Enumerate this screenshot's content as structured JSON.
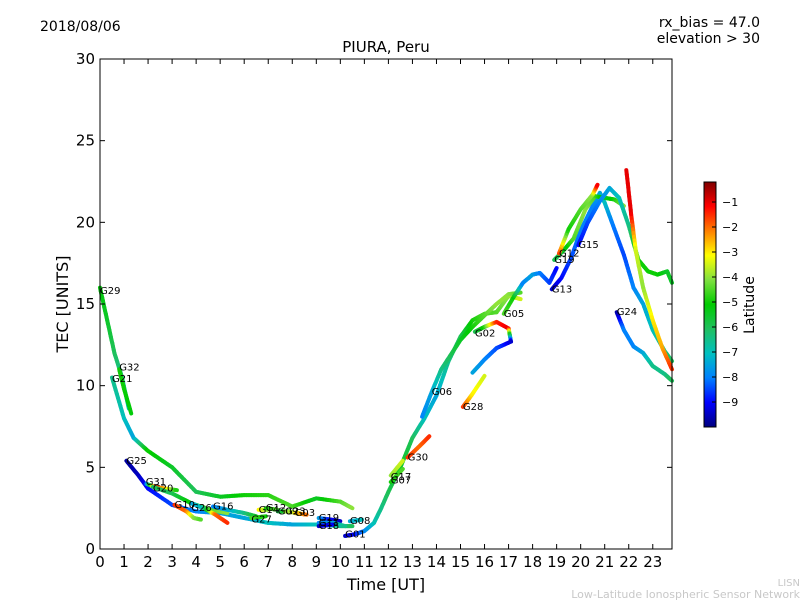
{
  "header": {
    "date": "2018/08/06",
    "bias_line": "rx_bias = 47.0",
    "elevation_line": "elevation > 30"
  },
  "footer": {
    "brand": "LISN",
    "network": "Low-Latitude Ionospheric Sensor Network"
  },
  "chart_data": {
    "type": "scatter",
    "title": "PIURA, Peru",
    "xlabel": "Time [UT]",
    "ylabel": "TEC [UNITS]",
    "xlim": [
      0,
      23.8
    ],
    "ylim": [
      0,
      30
    ],
    "xticks": [
      0,
      1,
      2,
      3,
      4,
      5,
      6,
      7,
      8,
      9,
      10,
      11,
      12,
      13,
      14,
      15,
      16,
      17,
      18,
      19,
      20,
      21,
      22,
      23
    ],
    "yticks": [
      0,
      5,
      10,
      15,
      20,
      25,
      30
    ],
    "grid": false,
    "colorbar": {
      "label": "Latitude",
      "range": [
        -10,
        -0.2
      ],
      "ticks": [
        -9,
        -8,
        -7,
        -6,
        -5,
        -4,
        -3,
        -2,
        -1
      ],
      "colormap": [
        "#00007f",
        "#0000ff",
        "#0080ff",
        "#00c0c0",
        "#20c060",
        "#00cc00",
        "#80e040",
        "#ffff00",
        "#ff8000",
        "#ff0000",
        "#800000"
      ]
    },
    "series": [
      {
        "name": "G29",
        "label_at": [
          0.0,
          15.8
        ],
        "points": [
          [
            0.0,
            16.0,
            -5.2
          ],
          [
            0.3,
            14.0,
            -5.5
          ],
          [
            0.6,
            12.0,
            -6.0
          ],
          [
            0.9,
            10.6,
            -6.5
          ],
          [
            1.2,
            8.6,
            -7.0
          ]
        ]
      },
      {
        "name": "G32",
        "label_at": [
          0.8,
          11.1
        ],
        "points": [
          [
            0.8,
            11.0,
            -5.0
          ],
          [
            1.0,
            9.8,
            -5.0
          ],
          [
            1.3,
            8.3,
            -5.2
          ]
        ]
      },
      {
        "name": "G21",
        "label_at": [
          0.5,
          10.4
        ],
        "points": [
          [
            0.5,
            10.5,
            -6.5
          ],
          [
            1.0,
            8.0,
            -7.0
          ],
          [
            1.4,
            6.8,
            -7.5
          ],
          [
            2.0,
            6.0,
            -5.0
          ],
          [
            3.0,
            5.0,
            -5.5
          ],
          [
            4.0,
            3.5,
            -6.0
          ],
          [
            5.0,
            3.2,
            -5.5
          ],
          [
            6.0,
            3.3,
            -5.0
          ],
          [
            7.0,
            3.3,
            -4.8
          ],
          [
            8.0,
            2.6,
            -4.5
          ],
          [
            9.0,
            3.1,
            -5.5
          ],
          [
            10.0,
            2.9,
            -4.5
          ],
          [
            10.5,
            2.5,
            -4.0
          ]
        ]
      },
      {
        "name": "G25",
        "label_at": [
          1.1,
          5.4
        ],
        "points": [
          [
            1.1,
            5.4,
            -9.8
          ],
          [
            1.6,
            4.5,
            -9.5
          ],
          [
            2.0,
            3.7,
            -9.0
          ],
          [
            3.0,
            2.7,
            -8.5
          ],
          [
            4.0,
            2.3,
            -8.0
          ],
          [
            5.0,
            2.2,
            -7.5
          ],
          [
            6.0,
            1.9,
            -7.5
          ],
          [
            7.0,
            1.6,
            -7.0
          ],
          [
            8.0,
            1.5,
            -7.5
          ],
          [
            9.0,
            1.5,
            -7.0
          ],
          [
            10.0,
            1.4,
            -6.5
          ],
          [
            10.5,
            1.4,
            -6.0
          ]
        ]
      },
      {
        "name": "G31",
        "label_at": [
          1.9,
          4.1
        ],
        "points": [
          [
            1.9,
            4.0,
            -9.0
          ],
          [
            2.3,
            3.8,
            -1.5
          ],
          [
            2.7,
            3.7,
            -2.5
          ],
          [
            3.2,
            3.6,
            -5.0
          ]
        ]
      },
      {
        "name": "G20",
        "label_at": [
          2.2,
          3.7
        ],
        "points": [
          [
            2.2,
            3.8,
            -6.0
          ],
          [
            3.0,
            3.4,
            -6.0
          ],
          [
            3.8,
            2.8,
            -5.0
          ],
          [
            4.6,
            2.4,
            -4.5
          ],
          [
            5.3,
            2.2,
            -4.0
          ]
        ]
      },
      {
        "name": "G10",
        "label_at": [
          3.1,
          2.7
        ],
        "points": [
          [
            3.1,
            2.7,
            -1.5
          ],
          [
            3.6,
            2.3,
            -2.0
          ],
          [
            3.9,
            1.9,
            -4.0
          ],
          [
            4.2,
            1.8,
            -4.5
          ]
        ]
      },
      {
        "name": "G26",
        "label_at": [
          3.8,
          2.5
        ],
        "points": [
          [
            3.8,
            2.8,
            -7.5
          ],
          [
            4.3,
            2.5,
            -7.0
          ],
          [
            4.8,
            2.1,
            -2.0
          ],
          [
            5.3,
            1.6,
            -1.5
          ]
        ]
      },
      {
        "name": "G16",
        "label_at": [
          4.7,
          2.6
        ],
        "points": [
          [
            4.7,
            2.6,
            -8.0
          ],
          [
            5.3,
            2.4,
            -7.5
          ],
          [
            6.0,
            2.2,
            -6.5
          ],
          [
            6.5,
            2.0,
            -5.5
          ]
        ]
      },
      {
        "name": "G27",
        "label_at": [
          6.3,
          1.8
        ],
        "points": [
          [
            6.3,
            1.9,
            -4.5
          ],
          [
            6.9,
            2.0,
            -5.0
          ]
        ]
      },
      {
        "name": "G14",
        "label_at": [
          6.6,
          2.4
        ],
        "points": [
          [
            6.6,
            2.4,
            -3.0
          ],
          [
            7.0,
            2.4,
            -4.0
          ]
        ]
      },
      {
        "name": "G12",
        "label_at": [
          6.9,
          2.5
        ],
        "points": [
          [
            6.9,
            2.5,
            -5.0
          ],
          [
            7.4,
            2.4,
            -4.5
          ]
        ]
      },
      {
        "name": "G09",
        "label_at": [
          7.4,
          2.3
        ],
        "points": [
          [
            7.4,
            2.3,
            -6.0
          ],
          [
            7.9,
            2.3,
            -5.0
          ]
        ]
      },
      {
        "name": "G23",
        "label_at": [
          7.7,
          2.3
        ],
        "points": [
          [
            7.7,
            2.3,
            -4.0
          ],
          [
            8.3,
            2.2,
            -3.5
          ]
        ]
      },
      {
        "name": "G03",
        "label_at": [
          8.1,
          2.2
        ],
        "points": [
          [
            8.1,
            2.2,
            -3.0
          ],
          [
            8.6,
            2.1,
            -2.0
          ]
        ]
      },
      {
        "name": "G19",
        "label_at": [
          9.1,
          1.9
        ],
        "points": [
          [
            9.1,
            1.9,
            -7.5
          ],
          [
            9.6,
            1.8,
            -9.0
          ],
          [
            10.0,
            1.7,
            -9.5
          ]
        ]
      },
      {
        "name": "G11",
        "label_at": [
          9.1,
          1.6
        ],
        "points": [
          [
            9.1,
            1.6,
            -8.0
          ],
          [
            9.7,
            1.6,
            -7.5
          ],
          [
            10.2,
            1.4,
            -6.5
          ]
        ]
      },
      {
        "name": "G18",
        "label_at": [
          9.1,
          1.4
        ],
        "points": [
          [
            9.1,
            1.4,
            -9.5
          ],
          [
            9.7,
            1.5,
            -9.0
          ]
        ]
      },
      {
        "name": "G08",
        "label_at": [
          10.4,
          1.7
        ],
        "points": [
          [
            10.4,
            1.7,
            -7.5
          ],
          [
            10.9,
            1.8,
            -7.0
          ]
        ]
      },
      {
        "name": "G01",
        "label_at": [
          10.2,
          0.9
        ],
        "points": [
          [
            10.2,
            0.8,
            -9.5
          ],
          [
            10.6,
            0.9,
            -9.0
          ],
          [
            11.0,
            1.1,
            -8.0
          ],
          [
            11.4,
            1.6,
            -7.0
          ],
          [
            11.7,
            2.5,
            -6.5
          ],
          [
            12.0,
            3.5,
            -6.0
          ],
          [
            12.5,
            5.0,
            -5.5
          ],
          [
            13.0,
            6.8,
            -6.0
          ],
          [
            13.5,
            8.0,
            -7.0
          ],
          [
            14.0,
            9.4,
            -7.5
          ],
          [
            14.5,
            11.5,
            -6.5
          ],
          [
            15.0,
            13.0,
            -6.0
          ],
          [
            15.5,
            14.0,
            -5.0
          ],
          [
            16.0,
            14.4,
            -4.5
          ],
          [
            16.5,
            14.5,
            -4.5
          ],
          [
            17.0,
            15.5,
            -4.0
          ],
          [
            17.5,
            15.3,
            -3.5
          ]
        ]
      },
      {
        "name": "G07",
        "label_at": [
          12.1,
          4.2
        ],
        "points": [
          [
            12.1,
            4.1,
            -5.0
          ],
          [
            12.6,
            4.9,
            -4.5
          ]
        ]
      },
      {
        "name": "G17",
        "label_at": [
          12.1,
          4.4
        ],
        "points": [
          [
            12.1,
            4.5,
            -4.0
          ],
          [
            12.6,
            5.4,
            -3.5
          ]
        ]
      },
      {
        "name": "G30",
        "label_at": [
          12.8,
          5.6
        ],
        "points": [
          [
            12.8,
            5.6,
            -1.5
          ],
          [
            13.3,
            6.3,
            -2.0
          ],
          [
            13.7,
            6.9,
            -1.5
          ]
        ]
      },
      {
        "name": "G06",
        "label_at": [
          13.8,
          9.6
        ],
        "points": [
          [
            13.4,
            8.1,
            -8.0
          ],
          [
            13.8,
            9.6,
            -7.5
          ],
          [
            14.2,
            11.0,
            -6.5
          ],
          [
            14.6,
            11.9,
            -6.0
          ],
          [
            15.0,
            12.8,
            -5.5
          ],
          [
            15.5,
            13.6,
            -5.0
          ],
          [
            16.0,
            14.3,
            -4.5
          ],
          [
            16.5,
            15.0,
            -4.0
          ],
          [
            17.0,
            15.6,
            -4.0
          ],
          [
            17.5,
            15.7,
            -4.5
          ]
        ]
      },
      {
        "name": "G28",
        "label_at": [
          15.1,
          8.7
        ],
        "points": [
          [
            15.1,
            8.7,
            -1.5
          ],
          [
            15.5,
            9.5,
            -3.0
          ],
          [
            16.0,
            10.6,
            -3.5
          ]
        ]
      },
      {
        "name": "G02",
        "label_at": [
          15.6,
          13.2
        ],
        "points": [
          [
            15.6,
            13.3,
            -6.0
          ],
          [
            16.0,
            13.6,
            -5.0
          ],
          [
            16.5,
            13.9,
            -1.5
          ],
          [
            17.0,
            13.5,
            -1.0
          ],
          [
            17.1,
            12.7,
            -9.5
          ],
          [
            16.5,
            12.3,
            -8.5
          ],
          [
            16.0,
            11.6,
            -8.0
          ],
          [
            15.5,
            10.8,
            -7.5
          ]
        ]
      },
      {
        "name": "G05",
        "label_at": [
          16.8,
          14.4
        ],
        "points": [
          [
            16.8,
            14.4,
            -4.5
          ],
          [
            17.2,
            15.4,
            -5.0
          ],
          [
            17.6,
            16.3,
            -8.0
          ],
          [
            18.0,
            16.8,
            -7.5
          ],
          [
            18.3,
            16.9,
            -8.0
          ],
          [
            18.7,
            16.3,
            -8.5
          ],
          [
            19.0,
            17.2,
            -9.0
          ]
        ]
      },
      {
        "name": "G13",
        "label_at": [
          18.8,
          15.9
        ],
        "points": [
          [
            18.8,
            15.9,
            -9.5
          ],
          [
            19.2,
            16.6,
            -9.0
          ],
          [
            19.6,
            17.8,
            -8.5
          ],
          [
            20.0,
            19.5,
            -8.0
          ],
          [
            20.5,
            21.0,
            -8.0
          ],
          [
            20.8,
            21.8,
            -7.5
          ],
          [
            21.0,
            21.2,
            -7.0
          ],
          [
            21.3,
            20.0,
            -8.0
          ],
          [
            21.8,
            18.0,
            -8.5
          ],
          [
            22.2,
            16.0,
            -8.0
          ],
          [
            22.6,
            15.0,
            -7.5
          ],
          [
            23.0,
            13.4,
            -7.0
          ],
          [
            23.5,
            12.1,
            -6.5
          ],
          [
            23.8,
            11.5,
            -6.0
          ]
        ]
      },
      {
        "name": "G19",
        "label_at": [
          18.9,
          17.7
        ],
        "points": [
          [
            18.9,
            17.7,
            -6.0
          ],
          [
            19.3,
            18.3,
            -5.5
          ],
          [
            19.7,
            19.0,
            -4.5
          ],
          [
            20.2,
            20.8,
            -4.0
          ],
          [
            20.6,
            21.6,
            -4.5
          ],
          [
            21.0,
            21.5,
            -5.5
          ],
          [
            21.4,
            21.4,
            -5.0
          ],
          [
            21.8,
            21.0,
            -4.0
          ]
        ]
      },
      {
        "name": "G12",
        "label_at": [
          19.1,
          18.1
        ],
        "points": [
          [
            19.1,
            18.1,
            -1.5
          ],
          [
            19.5,
            19.6,
            -5.0
          ],
          [
            20.0,
            20.8,
            -4.5
          ],
          [
            20.5,
            21.7,
            -4.0
          ],
          [
            20.7,
            22.3,
            -1.0
          ]
        ]
      },
      {
        "name": "G15",
        "label_at": [
          19.9,
          18.6
        ],
        "points": [
          [
            19.9,
            18.6,
            -9.0
          ],
          [
            20.3,
            20.0,
            -8.5
          ],
          [
            20.8,
            21.3,
            -8.0
          ],
          [
            21.2,
            22.1,
            -7.5
          ],
          [
            21.6,
            21.5,
            -7.0
          ],
          [
            22.0,
            19.8,
            -6.5
          ],
          [
            22.4,
            17.7,
            -5.0
          ],
          [
            22.8,
            17.0,
            -5.0
          ],
          [
            23.2,
            16.8,
            -5.0
          ],
          [
            23.6,
            17.0,
            -5.5
          ],
          [
            23.8,
            16.3,
            -5.5
          ]
        ]
      },
      {
        "name": "G24",
        "label_at": [
          21.5,
          14.5
        ],
        "points": [
          [
            21.5,
            14.5,
            -9.8
          ],
          [
            21.8,
            13.4,
            -8.0
          ],
          [
            22.2,
            12.4,
            -8.0
          ],
          [
            22.6,
            12.0,
            -7.5
          ],
          [
            23.0,
            11.2,
            -6.5
          ],
          [
            23.5,
            10.7,
            -6.5
          ],
          [
            23.8,
            10.3,
            -6.0
          ]
        ]
      },
      {
        "name": "",
        "label_at": null,
        "points": [
          [
            21.9,
            23.2,
            -1.0
          ],
          [
            22.1,
            20.5,
            -1.0
          ],
          [
            22.3,
            18.2,
            -3.5
          ],
          [
            22.6,
            16.0,
            -4.0
          ],
          [
            23.0,
            14.0,
            -3.0
          ],
          [
            23.4,
            12.3,
            -2.5
          ],
          [
            23.8,
            11.0,
            -1.5
          ]
        ]
      }
    ]
  }
}
